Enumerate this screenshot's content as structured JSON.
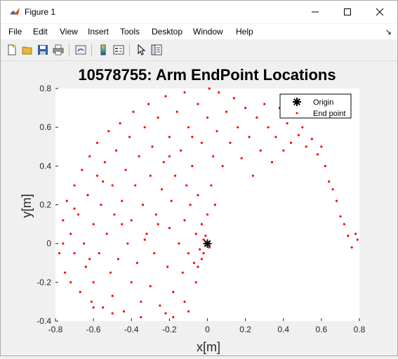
{
  "window": {
    "title": "Figure 1",
    "minimize_icon": "minimize-icon",
    "maximize_icon": "maximize-icon",
    "close_icon": "close-icon"
  },
  "menu": {
    "items": [
      "File",
      "Edit",
      "View",
      "Insert",
      "Tools",
      "Desktop",
      "Window",
      "Help"
    ]
  },
  "toolbar": {
    "icons": [
      "new-figure-icon",
      "open-file-icon",
      "save-icon",
      "print-icon",
      "link-plot-icon",
      "insert-colorbar-icon",
      "insert-legend-icon",
      "edit-plot-icon",
      "property-inspector-icon"
    ]
  },
  "colors": {
    "points": "#ff0000",
    "origin": "#000000",
    "axes_bg": "#ffffff",
    "figure_bg": "#f0f0f0"
  },
  "chart_data": {
    "type": "scatter",
    "title": "10578755: Arm EndPoint Locations",
    "xlabel": "x[m]",
    "ylabel": "y[m]",
    "xlim": [
      -0.8,
      0.8
    ],
    "ylim": [
      -0.4,
      0.8
    ],
    "xticks": [
      "-0.8",
      "-0.6",
      "-0.4",
      "-0.2",
      "0",
      "0.2",
      "0.4",
      "0.6",
      "0.8"
    ],
    "yticks": [
      "-0.4",
      "-0.2",
      "0",
      "0.2",
      "0.4",
      "0.6",
      "0.8"
    ],
    "grid": false,
    "legend_position": "top-right",
    "series": [
      {
        "name": "Origin",
        "marker": "asterisk",
        "color": "#000000",
        "points": [
          [
            0,
            0
          ]
        ]
      },
      {
        "name": "End point",
        "marker": "dot",
        "color": "#ff0000",
        "points": [
          [
            -0.78,
            -0.05
          ],
          [
            -0.76,
            0.12
          ],
          [
            -0.75,
            -0.15
          ],
          [
            -0.74,
            0.22
          ],
          [
            -0.72,
            0.05
          ],
          [
            -0.72,
            -0.2
          ],
          [
            -0.7,
            0.3
          ],
          [
            -0.7,
            -0.05
          ],
          [
            -0.68,
            0.15
          ],
          [
            -0.67,
            -0.25
          ],
          [
            -0.66,
            0.38
          ],
          [
            -0.65,
            0.0
          ],
          [
            -0.64,
            -0.12
          ],
          [
            -0.63,
            0.25
          ],
          [
            -0.62,
            0.45
          ],
          [
            -0.61,
            -0.3
          ],
          [
            -0.6,
            0.1
          ],
          [
            -0.6,
            -0.2
          ],
          [
            -0.58,
            0.35
          ],
          [
            -0.58,
            0.52
          ],
          [
            -0.57,
            -0.05
          ],
          [
            -0.56,
            0.2
          ],
          [
            -0.55,
            -0.33
          ],
          [
            -0.54,
            0.42
          ],
          [
            -0.53,
            0.05
          ],
          [
            -0.52,
            0.58
          ],
          [
            -0.51,
            -0.15
          ],
          [
            -0.5,
            0.3
          ],
          [
            -0.5,
            -0.27
          ],
          [
            -0.49,
            0.15
          ],
          [
            -0.48,
            0.48
          ],
          [
            -0.47,
            -0.08
          ],
          [
            -0.46,
            0.62
          ],
          [
            -0.45,
            0.22
          ],
          [
            -0.44,
            -0.35
          ],
          [
            -0.43,
            0.38
          ],
          [
            -0.42,
            0.0
          ],
          [
            -0.41,
            0.55
          ],
          [
            -0.4,
            -0.2
          ],
          [
            -0.4,
            0.12
          ],
          [
            -0.39,
            0.68
          ],
          [
            -0.38,
            0.3
          ],
          [
            -0.37,
            -0.1
          ],
          [
            -0.36,
            0.45
          ],
          [
            -0.35,
            -0.3
          ],
          [
            -0.34,
            0.2
          ],
          [
            -0.33,
            0.6
          ],
          [
            -0.32,
            0.05
          ],
          [
            -0.31,
            0.72
          ],
          [
            -0.3,
            -0.22
          ],
          [
            -0.3,
            0.35
          ],
          [
            -0.29,
            0.5
          ],
          [
            -0.28,
            -0.05
          ],
          [
            -0.27,
            0.15
          ],
          [
            -0.26,
            0.65
          ],
          [
            -0.25,
            -0.32
          ],
          [
            -0.24,
            0.28
          ],
          [
            -0.23,
            0.42
          ],
          [
            -0.22,
            0.76
          ],
          [
            -0.21,
            -0.12
          ],
          [
            -0.2,
            0.08
          ],
          [
            -0.2,
            0.55
          ],
          [
            -0.19,
            0.22
          ],
          [
            -0.18,
            -0.25
          ],
          [
            -0.17,
            0.35
          ],
          [
            -0.16,
            0.68
          ],
          [
            -0.15,
            0.0
          ],
          [
            -0.14,
            0.48
          ],
          [
            -0.13,
            -0.15
          ],
          [
            -0.12,
            0.12
          ],
          [
            -0.12,
            0.78
          ],
          [
            -0.11,
            0.3
          ],
          [
            -0.1,
            -0.05
          ],
          [
            -0.1,
            0.6
          ],
          [
            -0.09,
            0.2
          ],
          [
            -0.08,
            0.4
          ],
          [
            -0.07,
            -0.1
          ],
          [
            -0.06,
            0.05
          ],
          [
            -0.05,
            0.72
          ],
          [
            -0.05,
            0.25
          ],
          [
            -0.04,
            -0.03
          ],
          [
            -0.03,
            0.1
          ],
          [
            -0.03,
            0.52
          ],
          [
            -0.02,
            0.02
          ],
          [
            -0.02,
            -0.05
          ],
          [
            -0.01,
            0.04
          ],
          [
            0.0,
            0.65
          ],
          [
            0.0,
            0.15
          ],
          [
            0.01,
            -0.02
          ],
          [
            0.01,
            0.8
          ],
          [
            0.02,
            0.3
          ],
          [
            0.03,
            0.45
          ],
          [
            0.05,
            0.58
          ],
          [
            0.06,
            0.78
          ],
          [
            0.08,
            0.4
          ],
          [
            0.1,
            0.68
          ],
          [
            0.12,
            0.52
          ],
          [
            0.14,
            0.75
          ],
          [
            0.16,
            0.6
          ],
          [
            0.18,
            0.44
          ],
          [
            0.2,
            0.7
          ],
          [
            0.22,
            0.55
          ],
          [
            0.24,
            0.35
          ],
          [
            0.26,
            0.65
          ],
          [
            0.28,
            0.48
          ],
          [
            0.3,
            0.72
          ],
          [
            0.32,
            0.6
          ],
          [
            0.34,
            0.42
          ],
          [
            0.36,
            0.55
          ],
          [
            0.38,
            0.7
          ],
          [
            0.4,
            0.48
          ],
          [
            0.42,
            0.62
          ],
          [
            0.44,
            0.52
          ],
          [
            0.46,
            0.66
          ],
          [
            0.48,
            0.56
          ],
          [
            0.5,
            0.6
          ],
          [
            0.52,
            0.5
          ],
          [
            0.55,
            0.54
          ],
          [
            0.58,
            0.46
          ],
          [
            0.6,
            0.5
          ],
          [
            0.62,
            0.4
          ],
          [
            0.64,
            0.32
          ],
          [
            0.66,
            0.28
          ],
          [
            0.68,
            0.22
          ],
          [
            0.7,
            0.14
          ],
          [
            0.72,
            0.1
          ],
          [
            0.74,
            0.04
          ],
          [
            0.76,
            -0.02
          ],
          [
            0.78,
            0.05
          ],
          [
            0.79,
            0.02
          ],
          [
            -0.6,
            -0.33
          ],
          [
            -0.5,
            -0.36
          ],
          [
            -0.35,
            -0.38
          ],
          [
            -0.22,
            -0.36
          ],
          [
            -0.12,
            -0.3
          ],
          [
            -0.06,
            -0.2
          ],
          [
            -0.1,
            -0.35
          ],
          [
            -0.18,
            -0.38
          ],
          [
            -0.05,
            -0.12
          ],
          [
            -0.03,
            -0.08
          ],
          [
            -0.26,
            0.1
          ],
          [
            -0.33,
            0.02
          ],
          [
            -0.45,
            0.1
          ],
          [
            -0.55,
            0.32
          ],
          [
            -0.62,
            -0.08
          ],
          [
            -0.7,
            0.18
          ],
          [
            -0.76,
            0.0
          ],
          [
            -0.2,
            0.45
          ],
          [
            -0.08,
            0.55
          ],
          [
            0.04,
            0.2
          ]
        ]
      }
    ]
  }
}
